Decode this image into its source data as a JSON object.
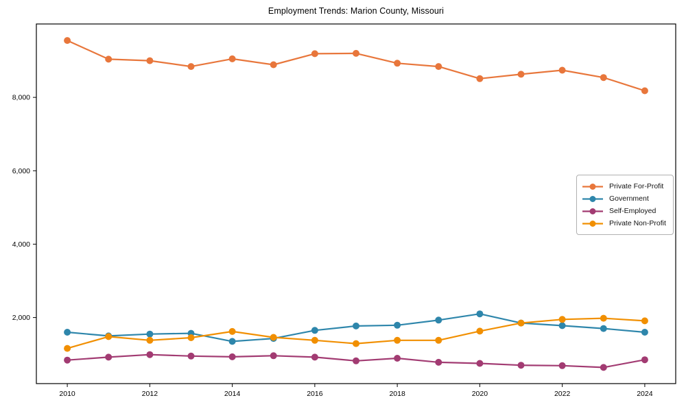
{
  "chart_data": {
    "type": "line",
    "title": "Employment Trends: Marion County, Missouri",
    "xlabel": "",
    "ylabel": "",
    "x": [
      2010,
      2011,
      2012,
      2013,
      2014,
      2015,
      2016,
      2017,
      2018,
      2019,
      2020,
      2021,
      2022,
      2023,
      2024
    ],
    "xticks": [
      2010,
      2012,
      2014,
      2016,
      2018,
      2020,
      2022,
      2024
    ],
    "xtick_labels": [
      "2010",
      "2012",
      "2014",
      "2016",
      "2018",
      "2020",
      "2022",
      "2024"
    ],
    "yticks": [
      2000,
      4000,
      6000,
      8000
    ],
    "ytick_labels": [
      "2,000",
      "4,000",
      "6,000",
      "8,000"
    ],
    "xlim": [
      2009.25,
      2024.75
    ],
    "ylim": [
      200,
      10000
    ],
    "grid": false,
    "legend_position": "center-right",
    "marker": "circle",
    "series": [
      {
        "name": "Private For-Profit",
        "color": "#E8763B",
        "values": [
          9550,
          9040,
          9000,
          8840,
          9050,
          8890,
          9190,
          9200,
          8930,
          8840,
          8510,
          8630,
          8740,
          8540,
          8180
        ]
      },
      {
        "name": "Government",
        "color": "#2E86AB",
        "values": [
          1600,
          1500,
          1550,
          1570,
          1350,
          1430,
          1650,
          1770,
          1790,
          1930,
          2100,
          1850,
          1780,
          1700,
          1600
        ]
      },
      {
        "name": "Self-Employed",
        "color": "#A23B72",
        "values": [
          840,
          920,
          990,
          950,
          930,
          960,
          920,
          820,
          890,
          780,
          750,
          700,
          690,
          640,
          850
        ]
      },
      {
        "name": "Private Non-Profit",
        "color": "#F18F01",
        "values": [
          1160,
          1480,
          1380,
          1450,
          1620,
          1460,
          1380,
          1290,
          1380,
          1380,
          1630,
          1850,
          1950,
          1980,
          1910
        ]
      }
    ],
    "axis_color": "#000000",
    "background_color": "#ffffff"
  }
}
